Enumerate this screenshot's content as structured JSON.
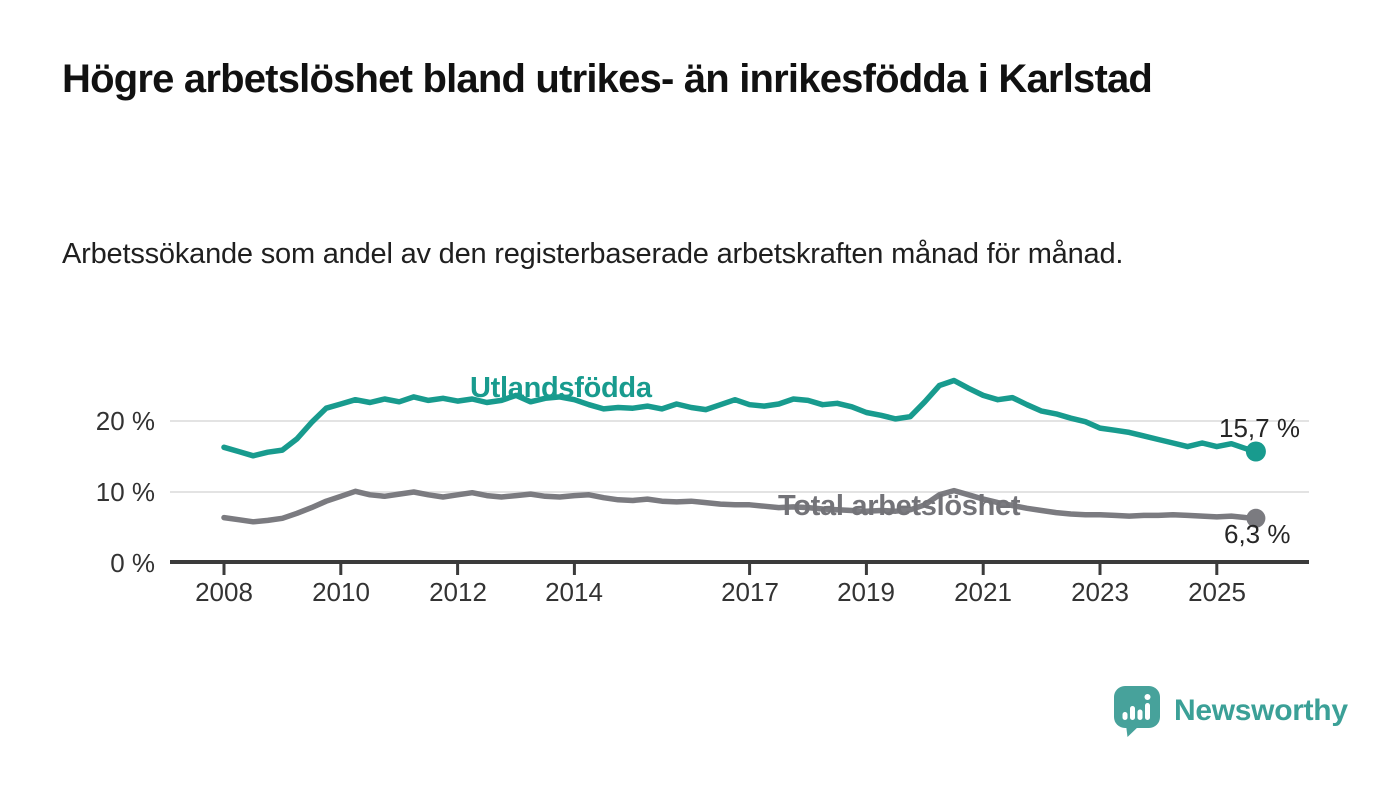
{
  "page": {
    "title": "Högre arbetslöshet bland utrikes- än inrikesfödda i Karlstad",
    "subtitle": "Arbetssökande som andel av den registerbaserade arbetskraften månad för månad."
  },
  "chart_data": {
    "type": "line",
    "title": "Högre arbetslöshet bland utrikes- än inrikesfödda i Karlstad",
    "subtitle": "Arbetssökande som andel av den registerbaserade arbetskraften månad för månad.",
    "y_unit": "%",
    "grid": "horizontal",
    "legend_position": "inline-labels",
    "xlim": [
      2007.1,
      2026.6
    ],
    "ylim": [
      0,
      27
    ],
    "x": [
      2008,
      2008.25,
      2008.5,
      2008.75,
      2009,
      2009.25,
      2009.5,
      2009.75,
      2010,
      2010.25,
      2010.5,
      2010.75,
      2011,
      2011.25,
      2011.5,
      2011.75,
      2012,
      2012.25,
      2012.5,
      2012.75,
      2013,
      2013.25,
      2013.5,
      2013.75,
      2014,
      2014.25,
      2014.5,
      2014.75,
      2015,
      2015.25,
      2015.5,
      2015.75,
      2016,
      2016.25,
      2016.5,
      2016.75,
      2017,
      2017.25,
      2017.5,
      2017.75,
      2018,
      2018.25,
      2018.5,
      2018.75,
      2019,
      2019.25,
      2019.5,
      2019.75,
      2020,
      2020.25,
      2020.5,
      2020.75,
      2021,
      2021.25,
      2021.5,
      2021.75,
      2022,
      2022.25,
      2022.5,
      2022.75,
      2023,
      2023.25,
      2023.5,
      2023.75,
      2024,
      2024.25,
      2024.5,
      2024.75,
      2025,
      2025.25,
      2025.5,
      2025.67
    ],
    "series": [
      {
        "name": "Utlandsfödda",
        "color": "#189b8e",
        "end_label": "15,7 %",
        "end_value": 15.7,
        "dot_radius": 10,
        "values": [
          16.3,
          15.7,
          15.1,
          15.6,
          15.9,
          17.5,
          19.8,
          21.8,
          22.4,
          23.0,
          22.6,
          23.1,
          22.7,
          23.4,
          22.9,
          23.2,
          22.8,
          23.1,
          22.6,
          22.9,
          23.6,
          22.7,
          23.2,
          23.4,
          23.0,
          22.3,
          21.7,
          21.9,
          21.8,
          22.1,
          21.7,
          22.4,
          21.9,
          21.6,
          22.3,
          23.0,
          22.3,
          22.1,
          22.4,
          23.1,
          22.9,
          22.3,
          22.5,
          22.0,
          21.2,
          20.8,
          20.3,
          20.6,
          22.7,
          25.0,
          25.7,
          24.6,
          23.6,
          23.0,
          23.3,
          22.3,
          21.4,
          21.0,
          20.4,
          19.9,
          19.0,
          18.7,
          18.4,
          17.9,
          17.4,
          16.9,
          16.4,
          16.9,
          16.4,
          16.8,
          16.1,
          15.7
        ]
      },
      {
        "name": "Total arbetslöshet",
        "color": "#7b7b80",
        "end_label": "6,3 %",
        "end_value": 6.3,
        "dot_radius": 9.5,
        "values": [
          6.4,
          6.1,
          5.8,
          6.0,
          6.3,
          7.0,
          7.8,
          8.7,
          9.4,
          10.1,
          9.6,
          9.4,
          9.7,
          10.0,
          9.6,
          9.3,
          9.6,
          9.9,
          9.5,
          9.3,
          9.5,
          9.7,
          9.4,
          9.3,
          9.5,
          9.6,
          9.2,
          8.9,
          8.8,
          9.0,
          8.7,
          8.6,
          8.7,
          8.5,
          8.3,
          8.2,
          8.2,
          8.0,
          7.8,
          7.9,
          7.8,
          7.6,
          7.5,
          7.4,
          7.3,
          7.4,
          7.3,
          7.5,
          8.2,
          9.6,
          10.2,
          9.6,
          9.0,
          8.5,
          8.1,
          7.7,
          7.4,
          7.1,
          6.9,
          6.8,
          6.8,
          6.7,
          6.6,
          6.7,
          6.7,
          6.8,
          6.7,
          6.6,
          6.5,
          6.6,
          6.4,
          6.3
        ]
      }
    ],
    "x_ticks": [
      2008,
      2010,
      2012,
      2014,
      2017,
      2019,
      2021,
      2023,
      2025
    ],
    "x_tick_labels": [
      "2008",
      "2010",
      "2012",
      "2014",
      "2017",
      "2019",
      "2021",
      "2023",
      "2025"
    ],
    "y_ticks": [
      {
        "value": 0,
        "label": "0 %"
      },
      {
        "value": 10,
        "label": "10 %"
      },
      {
        "value": 20,
        "label": "20 %"
      }
    ],
    "colors": {
      "grid": "#e3e3e3",
      "axis": "#3b3b3b",
      "tick_text": "#333333"
    }
  },
  "footer": {
    "brand": "Newsworthy",
    "brand_color": "#3ba097",
    "logo_icon": "newsworthy-speech-bubble-barchart-icon"
  }
}
